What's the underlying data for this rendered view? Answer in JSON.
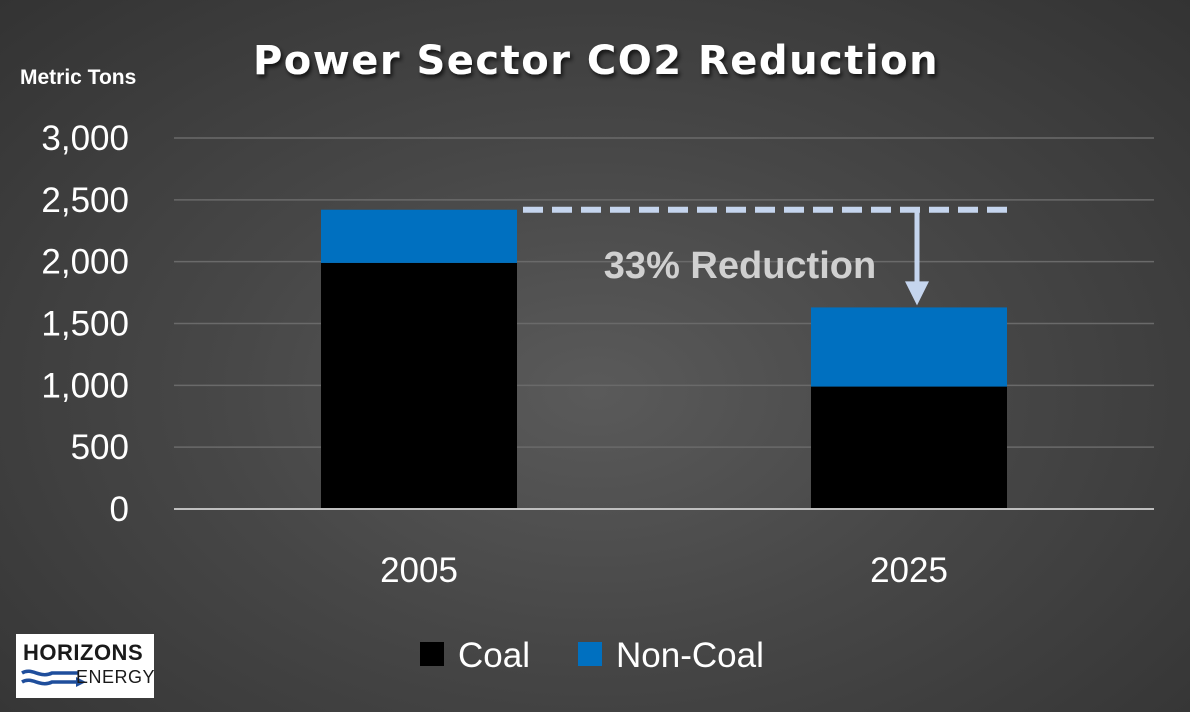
{
  "chart_data": {
    "type": "bar",
    "stacked": true,
    "title": "Power Sector CO2 Reduction",
    "ylabel": "Metric Tons",
    "xlabel": "",
    "categories": [
      "2005",
      "2025"
    ],
    "series": [
      {
        "name": "Coal",
        "color": "#000000",
        "values": [
          1990,
          990
        ]
      },
      {
        "name": "Non-Coal",
        "color": "#0070C0",
        "values": [
          430,
          640
        ]
      }
    ],
    "ylim": [
      0,
      3000
    ],
    "yticks": [
      0,
      500,
      1000,
      1500,
      2000,
      2500,
      3000
    ],
    "ytick_labels": [
      "0",
      "500",
      "1,000",
      "1,500",
      "2,000",
      "2,500",
      "3,000"
    ],
    "grid": true,
    "legend_position": "bottom",
    "annotation": {
      "text": "33% Reduction",
      "from_value": 2420,
      "to_value": 1630,
      "color": "#c5d5ee"
    }
  },
  "logo": {
    "top_text": "HORIZONS",
    "bottom_text": "ENERGY"
  },
  "colors": {
    "axis_text": "#ffffff",
    "gridline": "#6a6a6a",
    "axis_line": "#bfbfbf",
    "annotation_text": "#d0d0d0"
  }
}
